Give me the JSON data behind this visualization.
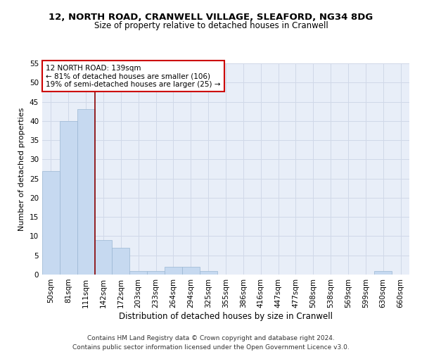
{
  "title1": "12, NORTH ROAD, CRANWELL VILLAGE, SLEAFORD, NG34 8DG",
  "title2": "Size of property relative to detached houses in Cranwell",
  "xlabel": "Distribution of detached houses by size in Cranwell",
  "ylabel": "Number of detached properties",
  "bins": [
    "50sqm",
    "81sqm",
    "111sqm",
    "142sqm",
    "172sqm",
    "203sqm",
    "233sqm",
    "264sqm",
    "294sqm",
    "325sqm",
    "355sqm",
    "386sqm",
    "416sqm",
    "447sqm",
    "477sqm",
    "508sqm",
    "538sqm",
    "569sqm",
    "599sqm",
    "630sqm",
    "660sqm"
  ],
  "values": [
    27,
    40,
    43,
    9,
    7,
    1,
    1,
    2,
    2,
    1,
    0,
    0,
    0,
    0,
    0,
    0,
    0,
    0,
    0,
    1,
    0
  ],
  "bar_color": "#c6d9f0",
  "bar_edge_color": "#9ab7d3",
  "vline_color": "#8b0000",
  "annotation_text": "12 NORTH ROAD: 139sqm\n← 81% of detached houses are smaller (106)\n19% of semi-detached houses are larger (25) →",
  "annotation_box_color": "white",
  "annotation_box_edge_color": "#cc0000",
  "ylim": [
    0,
    55
  ],
  "yticks": [
    0,
    5,
    10,
    15,
    20,
    25,
    30,
    35,
    40,
    45,
    50,
    55
  ],
  "grid_color": "#d0d8e8",
  "bg_color": "#e8eef8",
  "footer": "Contains HM Land Registry data © Crown copyright and database right 2024.\nContains public sector information licensed under the Open Government Licence v3.0.",
  "title1_fontsize": 9.5,
  "title2_fontsize": 8.5,
  "xlabel_fontsize": 8.5,
  "ylabel_fontsize": 8,
  "tick_fontsize": 7.5,
  "annotation_fontsize": 7.5,
  "footer_fontsize": 6.5
}
